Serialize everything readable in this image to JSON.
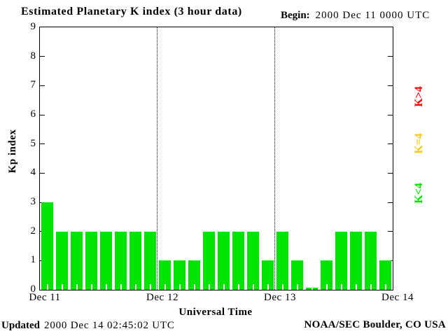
{
  "title": "Estimated Planetary K index (3 hour data)",
  "header": {
    "begin_label": "Begin:",
    "begin_value": "2000 Dec 11 0000 UTC"
  },
  "footer": {
    "updated_label": "Updated",
    "updated_value": "2000 Dec 14 02:45:02 UTC",
    "credit": "NOAA/SEC Boulder, CO USA"
  },
  "legend": [
    {
      "label": "K>4",
      "color": "#ff0000"
    },
    {
      "label": "K=4",
      "color": "#ffc800"
    },
    {
      "label": "K<4",
      "color": "#00e400"
    }
  ],
  "colors": {
    "bar_green": "#00e400",
    "axis": "#000000",
    "background": "#ffffff"
  },
  "chart_data": {
    "type": "bar",
    "title": "Estimated Planetary K index (3 hour data)",
    "xlabel": "Universal Time",
    "ylabel": "Kp index",
    "ylim": [
      0,
      9
    ],
    "y_ticks": [
      0,
      1,
      2,
      3,
      4,
      5,
      6,
      7,
      8,
      9
    ],
    "x_tick_labels": [
      "Dec 11",
      "Dec 12",
      "Dec 13",
      "Dec 14"
    ],
    "bin_hours": 3,
    "bars_per_day": 8,
    "values": [
      3,
      2,
      2,
      2,
      2,
      2,
      2,
      2,
      1,
      1,
      1,
      2,
      2,
      2,
      2,
      1,
      2,
      1,
      0,
      1,
      2,
      2,
      2,
      1
    ],
    "bar_color_rule": "green if K<4, yellow if K=4, red if K>4",
    "day_boundary_dotted_lines": [
      "Dec 12",
      "Dec 13"
    ],
    "legend_position": "right",
    "grid": false
  }
}
